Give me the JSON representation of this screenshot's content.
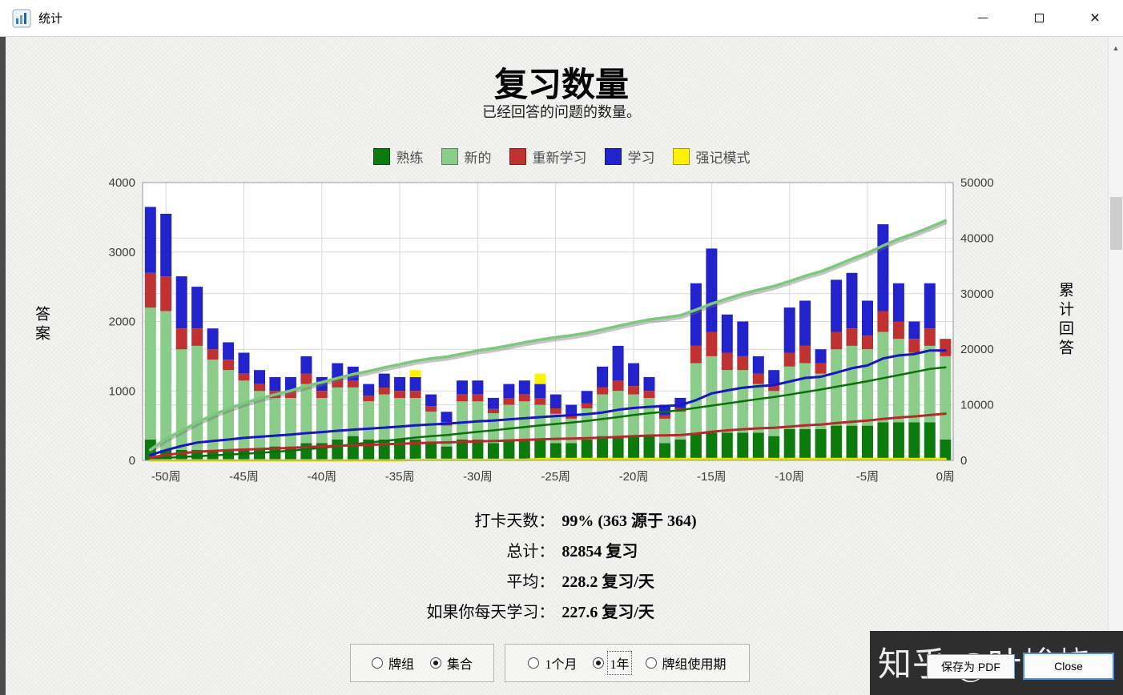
{
  "window": {
    "title": "统计",
    "close_glyph": "×"
  },
  "header": {
    "title": "复习数量",
    "subtitle": "已经回答的问题的数量。"
  },
  "legend": [
    {
      "label": "熟练",
      "color": "#0c7a0c"
    },
    {
      "label": "新的",
      "color": "#8bcc8b"
    },
    {
      "label": "重新学习",
      "color": "#c03232"
    },
    {
      "label": "学习",
      "color": "#2323cc"
    },
    {
      "label": "强记模式",
      "color": "#fff200"
    }
  ],
  "chart_data": {
    "type": "bar",
    "stacked": true,
    "title": "复习数量",
    "subtitle": "已经回答的问题的数量。",
    "x_unit": "周",
    "x_start_week": -51,
    "x_end_week": 0,
    "x_tick_weeks": [
      -50,
      -45,
      -40,
      -35,
      -30,
      -25,
      -20,
      -15,
      -10,
      -5,
      0
    ],
    "x_tick_labels": [
      "-50周",
      "-45周",
      "-40周",
      "-35周",
      "-30周",
      "-25周",
      "-20周",
      "-15周",
      "-10周",
      "-5周",
      "0周"
    ],
    "left_axis": {
      "label": "答案",
      "min": 0,
      "max": 4000,
      "ticks": [
        0,
        1000,
        2000,
        3000,
        4000
      ]
    },
    "right_axis": {
      "label": "累计回答",
      "min": 0,
      "max": 50000,
      "ticks": [
        0,
        10000,
        20000,
        30000,
        40000,
        50000
      ]
    },
    "grid": true,
    "cumulative_note": "each series is also drawn as a running-total line against the right axis",
    "series": [
      {
        "name": "熟练",
        "key": "mature",
        "color": "#0c7a0c",
        "line_color": "#0b6f0b",
        "values": [
          300,
          150,
          150,
          150,
          150,
          150,
          150,
          150,
          200,
          200,
          250,
          250,
          300,
          350,
          300,
          300,
          300,
          300,
          250,
          200,
          300,
          300,
          250,
          300,
          300,
          300,
          250,
          250,
          300,
          350,
          350,
          350,
          350,
          250,
          300,
          400,
          400,
          400,
          400,
          400,
          350,
          450,
          450,
          450,
          500,
          500,
          500,
          550,
          550,
          550,
          550,
          300
        ]
      },
      {
        "name": "新的",
        "key": "young",
        "color": "#8bcc8b",
        "line_color": "#7cc87c",
        "values": [
          1900,
          2000,
          1450,
          1500,
          1300,
          1150,
          1000,
          850,
          700,
          700,
          850,
          650,
          750,
          700,
          550,
          650,
          600,
          600,
          450,
          300,
          550,
          550,
          430,
          500,
          550,
          500,
          420,
          350,
          450,
          600,
          650,
          600,
          550,
          350,
          400,
          1000,
          1100,
          900,
          900,
          700,
          650,
          900,
          950,
          800,
          1100,
          1150,
          1100,
          1300,
          1200,
          1000,
          1100,
          1200
        ]
      },
      {
        "name": "重新学习",
        "key": "relearn",
        "color": "#c03232",
        "line_color": "#b52a2a",
        "values": [
          500,
          500,
          300,
          250,
          150,
          150,
          100,
          100,
          100,
          100,
          150,
          100,
          120,
          100,
          80,
          100,
          100,
          100,
          80,
          50,
          100,
          100,
          60,
          100,
          100,
          100,
          80,
          50,
          70,
          100,
          150,
          120,
          100,
          50,
          50,
          250,
          350,
          250,
          200,
          150,
          100,
          200,
          250,
          150,
          250,
          250,
          200,
          300,
          250,
          200,
          250,
          250
        ]
      },
      {
        "name": "学习",
        "key": "learn",
        "color": "#2323cc",
        "line_color": "#1717bd",
        "values": [
          950,
          900,
          750,
          600,
          300,
          250,
          300,
          200,
          200,
          200,
          250,
          200,
          230,
          200,
          170,
          200,
          200,
          200,
          170,
          150,
          200,
          200,
          160,
          200,
          200,
          200,
          200,
          150,
          180,
          300,
          500,
          330,
          200,
          150,
          150,
          900,
          1200,
          550,
          500,
          250,
          200,
          650,
          650,
          200,
          750,
          800,
          500,
          1250,
          550,
          250,
          650,
          0
        ]
      },
      {
        "name": "强记模式",
        "key": "cram",
        "color": "#fff200",
        "line_color": "#e3e300",
        "values": [
          0,
          0,
          0,
          0,
          0,
          0,
          0,
          0,
          0,
          0,
          0,
          0,
          0,
          0,
          0,
          0,
          0,
          100,
          0,
          0,
          0,
          0,
          0,
          0,
          0,
          150,
          0,
          0,
          0,
          0,
          0,
          0,
          0,
          0,
          0,
          0,
          0,
          0,
          0,
          0,
          0,
          0,
          0,
          0,
          0,
          0,
          0,
          0,
          0,
          0,
          0,
          0
        ]
      }
    ]
  },
  "stats": [
    {
      "label": "打卡天数：",
      "value": "99% (363 源于 364)"
    },
    {
      "label": "总计：",
      "value": "82854 复习"
    },
    {
      "label": "平均：",
      "value": "228.2 复习/天"
    },
    {
      "label": "如果你每天学习：",
      "value": "227.6 复习/天"
    }
  ],
  "controls": {
    "scope": [
      {
        "label": "牌组",
        "selected": false
      },
      {
        "label": "集合",
        "selected": true
      }
    ],
    "period": [
      {
        "label": "1个月",
        "selected": false
      },
      {
        "label": "1年",
        "selected": true,
        "focused": true
      },
      {
        "label": "牌组使用期",
        "selected": false
      }
    ],
    "save_pdf": "保存为 PDF",
    "close": "Close"
  },
  "watermark": "知乎 @叶峻峣",
  "scrollbar": {
    "up": "▲",
    "down": "▼"
  }
}
